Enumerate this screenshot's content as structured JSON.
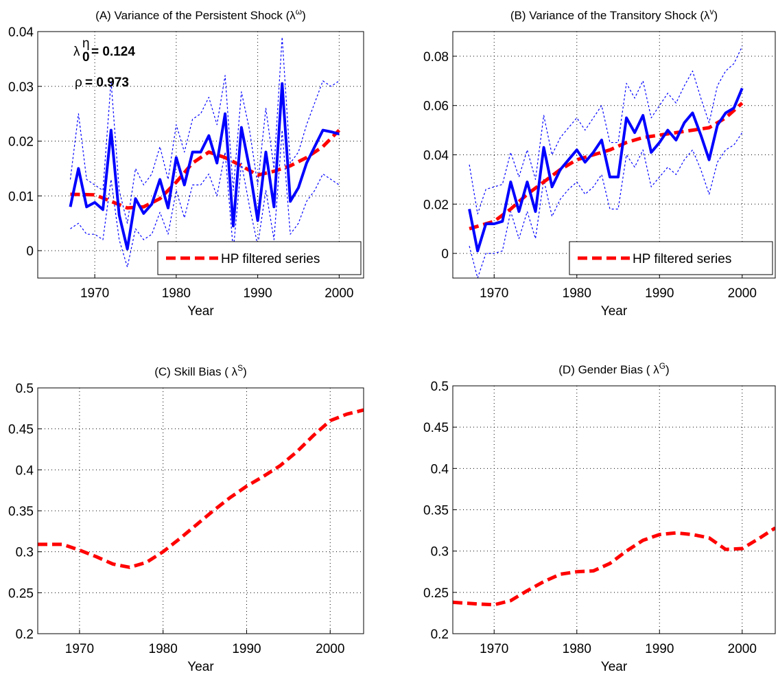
{
  "chart_data": [
    {
      "type": "line",
      "title_parts": [
        "(A) Variance of the Persistent Shock (λ",
        "ω",
        ")"
      ],
      "xlabel": "Year",
      "xlim": [
        1963,
        2003
      ],
      "xticks": [
        1970,
        1980,
        1990,
        2000
      ],
      "ylim": [
        -0.005,
        0.04
      ],
      "yticks": [
        0,
        0.01,
        0.02,
        0.03,
        0.04
      ],
      "grid": true,
      "legend": "lower right",
      "annotations": [
        {
          "parts": [
            "λ",
            "η",
            "0",
            "= 0.124"
          ]
        },
        {
          "parts": [
            "ρ",
            "= 0.973"
          ]
        }
      ],
      "series": [
        {
          "color": "#0000ff",
          "style": "dotted",
          "x": [
            1967,
            1968,
            1969,
            1970,
            1971,
            1972,
            1973,
            1974,
            1975,
            1976,
            1977,
            1978,
            1979,
            1980,
            1981,
            1982,
            1983,
            1984,
            1985,
            1986,
            1987,
            1988,
            1989,
            1990,
            1991,
            1992,
            1993,
            1994,
            1995,
            1996,
            1997,
            1998,
            1999,
            2000
          ],
          "values": [
            0.013,
            0.025,
            0.013,
            0.012,
            0.011,
            0.031,
            0.011,
            0.005,
            0.015,
            0.012,
            0.014,
            0.019,
            0.013,
            0.023,
            0.018,
            0.024,
            0.025,
            0.028,
            0.023,
            0.032,
            0.011,
            0.029,
            0.022,
            0.012,
            0.026,
            0.015,
            0.039,
            0.016,
            0.018,
            0.023,
            0.027,
            0.031,
            0.03,
            0.031
          ]
        },
        {
          "color": "#0000ff",
          "style": "dotted",
          "x": [
            1967,
            1968,
            1969,
            1970,
            1971,
            1972,
            1973,
            1974,
            1975,
            1976,
            1977,
            1978,
            1979,
            1980,
            1981,
            1982,
            1983,
            1984,
            1985,
            1986,
            1987,
            1988,
            1989,
            1990,
            1991,
            1992,
            1993,
            1994,
            1995,
            1996,
            1997,
            1998,
            1999,
            2000
          ],
          "values": [
            0.004,
            0.005,
            0.003,
            0.003,
            0.002,
            0.013,
            0.002,
            -0.003,
            0.004,
            0.002,
            0.003,
            0.007,
            0.003,
            0.011,
            0.006,
            0.012,
            0.012,
            0.014,
            0.01,
            0.018,
            0,
            0.016,
            0.008,
            0.001,
            0.011,
            0.002,
            0.022,
            0.003,
            0.005,
            0.009,
            0.011,
            0.014,
            0.013,
            0.012
          ]
        },
        {
          "color": "#ff0000",
          "style": "dashed",
          "name": "HP filtered series",
          "x": [
            1967,
            1970,
            1972,
            1974,
            1976,
            1978,
            1980,
            1982,
            1984,
            1986,
            1988,
            1990,
            1992,
            1994,
            1996,
            1998,
            2000
          ],
          "values": [
            0.0103,
            0.0102,
            0.009,
            0.0078,
            0.008,
            0.0095,
            0.0125,
            0.016,
            0.018,
            0.017,
            0.0155,
            0.0138,
            0.0145,
            0.0155,
            0.017,
            0.019,
            0.022
          ]
        },
        {
          "color": "#0000ff",
          "style": "solid",
          "x": [
            1967,
            1968,
            1969,
            1970,
            1971,
            1972,
            1973,
            1974,
            1975,
            1976,
            1977,
            1978,
            1979,
            1980,
            1981,
            1982,
            1983,
            1984,
            1985,
            1986,
            1987,
            1988,
            1989,
            1990,
            1991,
            1992,
            1993,
            1994,
            1995,
            1996,
            1997,
            1998,
            1999,
            2000
          ],
          "values": [
            0.008,
            0.015,
            0.008,
            0.0088,
            0.0075,
            0.022,
            0.0065,
            0.0003,
            0.0095,
            0.0068,
            0.0085,
            0.013,
            0.0078,
            0.017,
            0.012,
            0.018,
            0.018,
            0.021,
            0.016,
            0.025,
            0.0045,
            0.0225,
            0.015,
            0.0055,
            0.018,
            0.008,
            0.0305,
            0.009,
            0.0115,
            0.016,
            0.019,
            0.022,
            0.0217,
            0.0213
          ]
        }
      ]
    },
    {
      "type": "line",
      "title_parts": [
        "(B) Variance of the Transitory Shock (λ",
        "v",
        ")"
      ],
      "xlabel": "Year",
      "xlim": [
        1965,
        2004
      ],
      "xticks": [
        1970,
        1980,
        1990,
        2000
      ],
      "ylim": [
        -0.01,
        0.09
      ],
      "yticks": [
        0,
        0.02,
        0.04,
        0.06,
        0.08
      ],
      "grid": true,
      "legend": "lower right",
      "series": [
        {
          "color": "#0000ff",
          "style": "dotted",
          "x": [
            1967,
            1968,
            1969,
            1970,
            1971,
            1972,
            1973,
            1974,
            1975,
            1976,
            1977,
            1978,
            1979,
            1980,
            1981,
            1982,
            1983,
            1984,
            1985,
            1986,
            1987,
            1988,
            1989,
            1990,
            1991,
            1992,
            1993,
            1994,
            1995,
            1996,
            1997,
            1998,
            1999,
            2000
          ],
          "values": [
            0.036,
            0.016,
            0.026,
            0.027,
            0.028,
            0.041,
            0.031,
            0.042,
            0.03,
            0.056,
            0.04,
            0.047,
            0.051,
            0.055,
            0.05,
            0.055,
            0.06,
            0.045,
            0.045,
            0.069,
            0.063,
            0.07,
            0.055,
            0.06,
            0.065,
            0.061,
            0.068,
            0.074,
            0.063,
            0.053,
            0.068,
            0.074,
            0.077,
            0.084
          ]
        },
        {
          "color": "#0000ff",
          "style": "dotted",
          "x": [
            1967,
            1968,
            1969,
            1970,
            1971,
            1972,
            1973,
            1974,
            1975,
            1976,
            1977,
            1978,
            1979,
            1980,
            1981,
            1982,
            1983,
            1984,
            1985,
            1986,
            1987,
            1988,
            1989,
            1990,
            1991,
            1992,
            1993,
            1994,
            1995,
            1996,
            1997,
            1998,
            1999,
            2000
          ],
          "values": [
            0.003,
            -0.01,
            0.0,
            0.0,
            0.001,
            0.017,
            0.006,
            0.017,
            0.006,
            0.03,
            0.015,
            0.022,
            0.026,
            0.029,
            0.024,
            0.027,
            0.032,
            0.018,
            0.018,
            0.04,
            0.035,
            0.042,
            0.027,
            0.031,
            0.035,
            0.032,
            0.038,
            0.042,
            0.034,
            0.024,
            0.037,
            0.042,
            0.044,
            0.049
          ]
        },
        {
          "color": "#ff0000",
          "style": "dashed",
          "name": "HP filtered series",
          "x": [
            1967,
            1970,
            1972,
            1974,
            1976,
            1978,
            1980,
            1982,
            1984,
            1986,
            1988,
            1990,
            1992,
            1994,
            1996,
            1998,
            2000
          ],
          "values": [
            0.01,
            0.013,
            0.018,
            0.024,
            0.029,
            0.034,
            0.038,
            0.04,
            0.042,
            0.045,
            0.047,
            0.048,
            0.049,
            0.05,
            0.051,
            0.055,
            0.061
          ]
        },
        {
          "color": "#0000ff",
          "style": "solid",
          "x": [
            1967,
            1968,
            1969,
            1970,
            1971,
            1972,
            1973,
            1974,
            1975,
            1976,
            1977,
            1978,
            1979,
            1980,
            1981,
            1982,
            1983,
            1984,
            1985,
            1986,
            1987,
            1988,
            1989,
            1990,
            1991,
            1992,
            1993,
            1994,
            1995,
            1996,
            1997,
            1998,
            1999,
            2000
          ],
          "values": [
            0.018,
            0.001,
            0.012,
            0.012,
            0.013,
            0.029,
            0.017,
            0.029,
            0.017,
            0.043,
            0.027,
            0.034,
            0.038,
            0.042,
            0.037,
            0.041,
            0.046,
            0.031,
            0.031,
            0.055,
            0.049,
            0.056,
            0.041,
            0.045,
            0.05,
            0.046,
            0.053,
            0.057,
            0.048,
            0.038,
            0.052,
            0.057,
            0.059,
            0.067
          ]
        }
      ]
    },
    {
      "type": "line",
      "title_parts": [
        "(C) Skill Bias ( λ",
        "S",
        ")"
      ],
      "xlabel": "Year",
      "xlim": [
        1965,
        2004
      ],
      "xticks": [
        1970,
        1980,
        1990,
        2000
      ],
      "ylim": [
        0.2,
        0.5
      ],
      "yticks": [
        0.2,
        0.25,
        0.3,
        0.35,
        0.4,
        0.45,
        0.5
      ],
      "grid": true,
      "series": [
        {
          "color": "#ff0000",
          "style": "dashed",
          "x": [
            1965,
            1968,
            1970,
            1972,
            1974,
            1976,
            1978,
            1980,
            1982,
            1984,
            1986,
            1988,
            1990,
            1992,
            1994,
            1996,
            1998,
            2000,
            2002,
            2004
          ],
          "values": [
            0.309,
            0.309,
            0.302,
            0.294,
            0.285,
            0.281,
            0.287,
            0.3,
            0.316,
            0.333,
            0.35,
            0.366,
            0.38,
            0.392,
            0.405,
            0.422,
            0.442,
            0.46,
            0.468,
            0.473
          ]
        }
      ]
    },
    {
      "type": "line",
      "title_parts": [
        "(D) Gender Bias ( λ",
        "G",
        ")"
      ],
      "xlabel": "Year",
      "xlim": [
        1965,
        2004
      ],
      "xticks": [
        1970,
        1980,
        1990,
        2000
      ],
      "ylim": [
        0.2,
        0.5
      ],
      "yticks": [
        0.2,
        0.25,
        0.3,
        0.35,
        0.4,
        0.45,
        0.5
      ],
      "grid": true,
      "series": [
        {
          "color": "#ff0000",
          "style": "dashed",
          "x": [
            1965,
            1968,
            1970,
            1972,
            1974,
            1976,
            1978,
            1980,
            1982,
            1984,
            1986,
            1988,
            1990,
            1992,
            1994,
            1996,
            1998,
            2000,
            2002,
            2004
          ],
          "values": [
            0.238,
            0.236,
            0.235,
            0.24,
            0.252,
            0.263,
            0.272,
            0.275,
            0.276,
            0.285,
            0.3,
            0.313,
            0.32,
            0.322,
            0.32,
            0.316,
            0.302,
            0.303,
            0.315,
            0.328
          ]
        }
      ]
    }
  ]
}
